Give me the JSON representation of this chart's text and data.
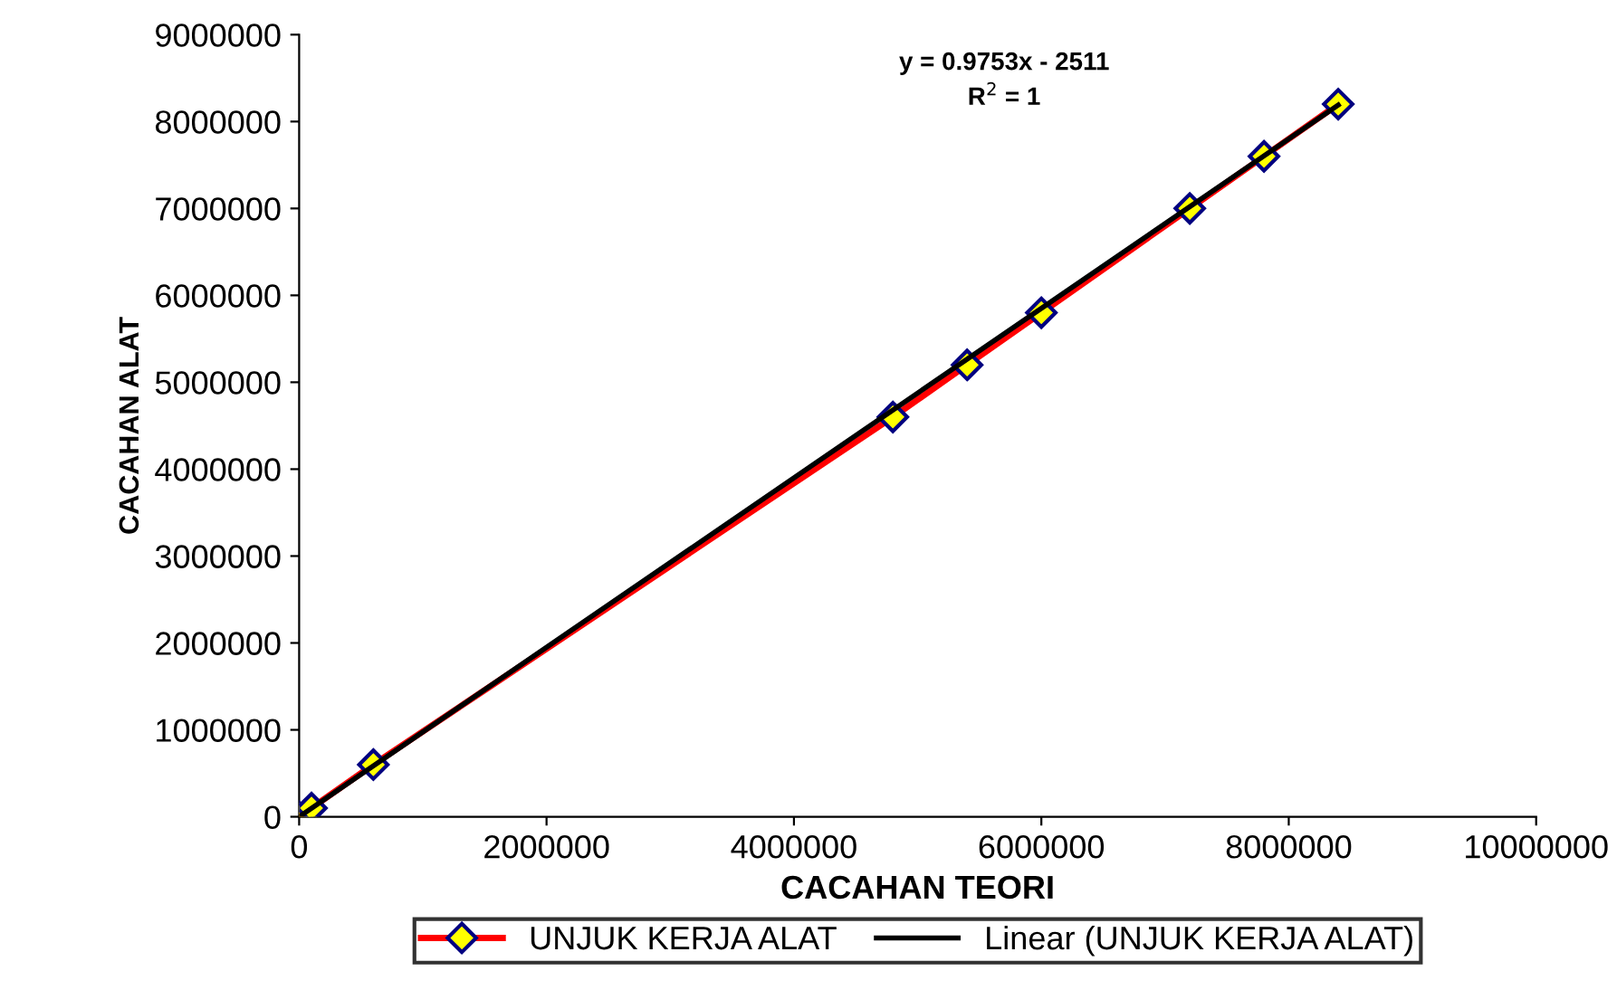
{
  "chart_data": {
    "type": "line",
    "xlabel": "CACAHAN TEORI",
    "ylabel": "CACAHAN ALAT",
    "annotations": [
      "y = 0.9753x - 2511",
      "R$^{2}$ = 1"
    ],
    "x": [
      0,
      100000,
      600000,
      4800000,
      5400000,
      6000000,
      7200000,
      7800000,
      8400000
    ],
    "series": [
      {
        "name": "UNJUK KERJA ALAT",
        "color": "#ff0000",
        "marker": "diamond",
        "values": [
          0,
          100000,
          600000,
          4600000,
          5200000,
          5800000,
          7000000,
          7600000,
          8200000
        ]
      },
      {
        "name": "Linear (UNJUK KERJA ALAT)",
        "color": "#000000",
        "marker": "none",
        "x": [
          0,
          8400000
        ],
        "values": [
          0,
          8190000
        ]
      }
    ],
    "xlim": [
      0,
      10000000
    ],
    "xticks": [
      0,
      2000000,
      4000000,
      6000000,
      8000000,
      10000000
    ],
    "ylim": [
      0,
      9000000
    ],
    "yticks": [
      0,
      1000000,
      2000000,
      3000000,
      4000000,
      5000000,
      6000000,
      7000000,
      8000000,
      9000000
    ],
    "grid": false,
    "legend": "bottom"
  }
}
